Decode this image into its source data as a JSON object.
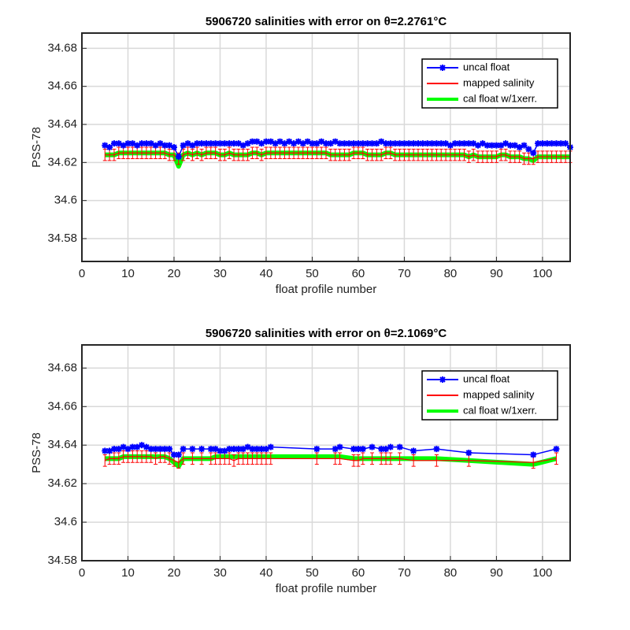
{
  "chart_data": [
    {
      "type": "line",
      "title": "5906720 salinities with error on θ=2.2761°C",
      "xlabel": "float profile number",
      "ylabel": "PSS-78",
      "xlim": [
        0,
        106
      ],
      "ylim": [
        34.568,
        34.688
      ],
      "xticks": [
        0,
        10,
        20,
        30,
        40,
        50,
        60,
        70,
        80,
        90,
        100
      ],
      "yticks": [
        34.58,
        34.6,
        34.62,
        34.64,
        34.66,
        34.68
      ],
      "grid": true,
      "legend": "upper right",
      "x": [
        5,
        6,
        7,
        8,
        9,
        10,
        11,
        12,
        13,
        14,
        15,
        16,
        17,
        18,
        19,
        20,
        21,
        22,
        23,
        24,
        25,
        26,
        27,
        28,
        29,
        30,
        31,
        32,
        33,
        34,
        35,
        36,
        37,
        38,
        39,
        40,
        41,
        42,
        43,
        44,
        45,
        46,
        47,
        48,
        49,
        50,
        51,
        52,
        53,
        54,
        55,
        56,
        57,
        58,
        59,
        60,
        61,
        62,
        63,
        64,
        65,
        66,
        67,
        68,
        69,
        70,
        71,
        72,
        73,
        74,
        75,
        76,
        77,
        78,
        79,
        80,
        81,
        82,
        83,
        84,
        85,
        86,
        87,
        88,
        89,
        90,
        91,
        92,
        93,
        94,
        95,
        96,
        97,
        98,
        99,
        100,
        101,
        102,
        103,
        104,
        105,
        106
      ],
      "series": [
        {
          "name": "uncal float",
          "color": "#0000ff",
          "values": [
            34.629,
            34.628,
            34.63,
            34.63,
            34.629,
            34.63,
            34.63,
            34.629,
            34.63,
            34.63,
            34.63,
            34.629,
            34.63,
            34.629,
            34.629,
            34.628,
            34.623,
            34.629,
            34.63,
            34.629,
            34.63,
            34.63,
            34.63,
            34.63,
            34.63,
            34.63,
            34.63,
            34.63,
            34.63,
            34.63,
            34.629,
            34.63,
            34.631,
            34.631,
            34.63,
            34.631,
            34.631,
            34.63,
            34.631,
            34.63,
            34.631,
            34.63,
            34.631,
            34.63,
            34.631,
            34.63,
            34.63,
            34.631,
            34.63,
            34.63,
            34.631,
            34.63,
            34.63,
            34.63,
            34.63,
            34.63,
            34.63,
            34.63,
            34.63,
            34.63,
            34.631,
            34.63,
            34.63,
            34.63,
            34.63,
            34.63,
            34.63,
            34.63,
            34.63,
            34.63,
            34.63,
            34.63,
            34.63,
            34.63,
            34.63,
            34.629,
            34.63,
            34.63,
            34.63,
            34.63,
            34.63,
            34.629,
            34.63,
            34.629,
            34.629,
            34.629,
            34.629,
            34.63,
            34.629,
            34.629,
            34.628,
            34.629,
            34.627,
            34.625,
            34.63,
            34.63,
            34.63,
            34.63,
            34.63,
            34.63,
            34.63,
            34.628
          ]
        },
        {
          "name": "mapped salinity",
          "color": "#ff0000",
          "error": 0.003,
          "values": [
            34.624,
            34.624,
            34.624,
            34.625,
            34.625,
            34.625,
            34.625,
            34.625,
            34.625,
            34.625,
            34.625,
            34.625,
            34.625,
            34.625,
            34.624,
            34.624,
            34.622,
            34.624,
            34.625,
            34.624,
            34.625,
            34.624,
            34.625,
            34.625,
            34.625,
            34.624,
            34.624,
            34.625,
            34.624,
            34.624,
            34.624,
            34.624,
            34.625,
            34.625,
            34.624,
            34.625,
            34.625,
            34.625,
            34.625,
            34.625,
            34.625,
            34.625,
            34.625,
            34.625,
            34.625,
            34.625,
            34.625,
            34.625,
            34.625,
            34.624,
            34.624,
            34.624,
            34.624,
            34.624,
            34.625,
            34.625,
            34.625,
            34.624,
            34.624,
            34.624,
            34.624,
            34.625,
            34.625,
            34.624,
            34.624,
            34.624,
            34.624,
            34.624,
            34.624,
            34.624,
            34.624,
            34.624,
            34.624,
            34.624,
            34.624,
            34.624,
            34.624,
            34.624,
            34.624,
            34.623,
            34.624,
            34.623,
            34.623,
            34.623,
            34.623,
            34.623,
            34.624,
            34.624,
            34.623,
            34.623,
            34.623,
            34.622,
            34.622,
            34.622,
            34.623,
            34.623,
            34.623,
            34.623,
            34.623,
            34.623,
            34.623,
            34.623
          ]
        },
        {
          "name": "cal float w/1xerr.",
          "color": "#00ff00",
          "values": [
            34.624,
            34.624,
            34.624,
            34.625,
            34.625,
            34.625,
            34.625,
            34.625,
            34.625,
            34.625,
            34.625,
            34.625,
            34.625,
            34.625,
            34.624,
            34.624,
            34.618,
            34.624,
            34.625,
            34.624,
            34.625,
            34.624,
            34.625,
            34.625,
            34.625,
            34.624,
            34.624,
            34.625,
            34.624,
            34.624,
            34.624,
            34.624,
            34.625,
            34.625,
            34.624,
            34.625,
            34.625,
            34.625,
            34.625,
            34.625,
            34.625,
            34.625,
            34.625,
            34.625,
            34.625,
            34.625,
            34.625,
            34.625,
            34.625,
            34.624,
            34.624,
            34.624,
            34.624,
            34.624,
            34.625,
            34.625,
            34.625,
            34.624,
            34.624,
            34.624,
            34.624,
            34.625,
            34.625,
            34.624,
            34.624,
            34.624,
            34.624,
            34.624,
            34.624,
            34.624,
            34.624,
            34.624,
            34.624,
            34.624,
            34.624,
            34.624,
            34.624,
            34.624,
            34.624,
            34.623,
            34.624,
            34.623,
            34.623,
            34.623,
            34.623,
            34.623,
            34.624,
            34.624,
            34.623,
            34.623,
            34.623,
            34.622,
            34.622,
            34.621,
            34.623,
            34.623,
            34.623,
            34.623,
            34.623,
            34.623,
            34.623,
            34.623
          ]
        }
      ]
    },
    {
      "type": "line",
      "title": "5906720 salinities with error on θ=2.1069°C",
      "xlabel": "float profile number",
      "ylabel": "PSS-78",
      "xlim": [
        0,
        106
      ],
      "ylim": [
        34.58,
        34.692
      ],
      "xticks": [
        0,
        10,
        20,
        30,
        40,
        50,
        60,
        70,
        80,
        90,
        100
      ],
      "yticks": [
        34.58,
        34.6,
        34.62,
        34.64,
        34.66,
        34.68
      ],
      "grid": true,
      "legend": "upper right",
      "x": [
        5,
        6,
        7,
        8,
        9,
        10,
        11,
        12,
        13,
        14,
        15,
        16,
        17,
        18,
        19,
        20,
        21,
        22,
        24,
        26,
        28,
        29,
        30,
        31,
        32,
        33,
        34,
        35,
        36,
        37,
        38,
        39,
        40,
        41,
        51,
        55,
        56,
        59,
        60,
        61,
        63,
        65,
        66,
        67,
        69,
        72,
        77,
        84,
        98,
        103
      ],
      "series": [
        {
          "name": "uncal float",
          "color": "#0000ff",
          "values": [
            34.637,
            34.637,
            34.638,
            34.638,
            34.639,
            34.638,
            34.639,
            34.639,
            34.64,
            34.639,
            34.638,
            34.638,
            34.638,
            34.638,
            34.638,
            34.635,
            34.635,
            34.638,
            34.638,
            34.638,
            34.638,
            34.638,
            34.637,
            34.637,
            34.638,
            34.638,
            34.638,
            34.638,
            34.639,
            34.638,
            34.638,
            34.638,
            34.638,
            34.639,
            34.638,
            34.638,
            34.639,
            34.638,
            34.638,
            34.638,
            34.639,
            34.638,
            34.638,
            34.639,
            34.639,
            34.637,
            34.638,
            34.636,
            34.635,
            34.638
          ]
        },
        {
          "name": "mapped salinity",
          "color": "#ff0000",
          "error": 0.003,
          "values": [
            34.632,
            34.633,
            34.633,
            34.633,
            34.634,
            34.634,
            34.634,
            34.634,
            34.634,
            34.634,
            34.634,
            34.633,
            34.634,
            34.634,
            34.633,
            34.632,
            34.631,
            34.633,
            34.633,
            34.633,
            34.633,
            34.633,
            34.633,
            34.633,
            34.633,
            34.632,
            34.633,
            34.633,
            34.633,
            34.633,
            34.633,
            34.633,
            34.633,
            34.633,
            34.633,
            34.633,
            34.633,
            34.632,
            34.632,
            34.633,
            34.633,
            34.633,
            34.633,
            34.633,
            34.633,
            34.632,
            34.632,
            34.632,
            34.631,
            34.633
          ]
        },
        {
          "name": "cal float w/1xerr.",
          "color": "#00ff00",
          "values": [
            34.633,
            34.633,
            34.633,
            34.633,
            34.634,
            34.634,
            34.634,
            34.634,
            34.634,
            34.634,
            34.634,
            34.634,
            34.634,
            34.634,
            34.633,
            34.631,
            34.629,
            34.633,
            34.633,
            34.633,
            34.633,
            34.634,
            34.634,
            34.634,
            34.634,
            34.634,
            34.634,
            34.634,
            34.634,
            34.634,
            34.634,
            34.634,
            34.634,
            34.634,
            34.634,
            34.634,
            34.634,
            34.633,
            34.633,
            34.633,
            34.633,
            34.633,
            34.633,
            34.633,
            34.633,
            34.633,
            34.633,
            34.632,
            34.63,
            34.633
          ]
        }
      ]
    }
  ]
}
